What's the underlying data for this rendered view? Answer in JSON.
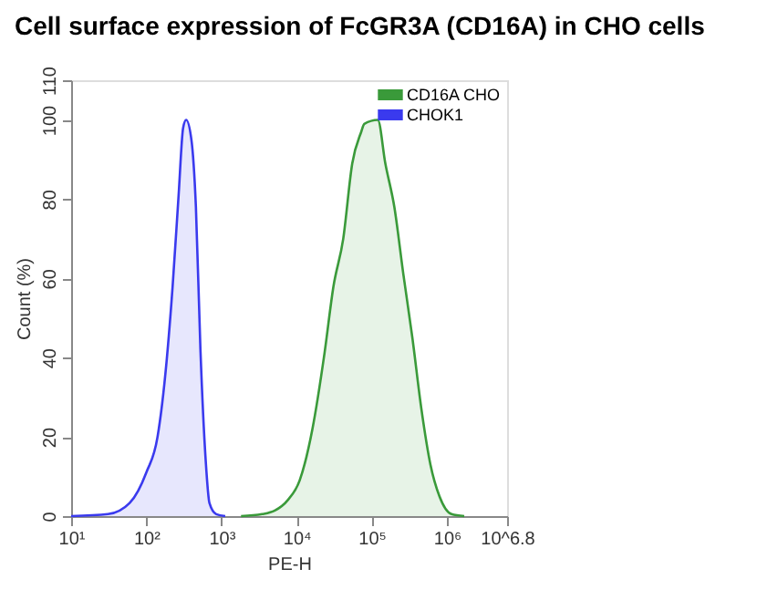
{
  "chart_data": {
    "type": "area",
    "title": "Cell surface expression of FcGR3A (CD16A) in CHO cells",
    "xlabel": "PE-H",
    "ylabel": "Count (%)",
    "log": "x",
    "xlim": [
      10,
      6309573
    ],
    "ylim": [
      0,
      110
    ],
    "xticks": [
      {
        "value": 10,
        "label": "10¹"
      },
      {
        "value": 100,
        "label": "10²"
      },
      {
        "value": 1000,
        "label": "10³"
      },
      {
        "value": 10000,
        "label": "10⁴"
      },
      {
        "value": 100000,
        "label": "10⁵"
      },
      {
        "value": 1000000,
        "label": "10⁶"
      },
      {
        "value": 6309573,
        "label": "10^6.8"
      }
    ],
    "yticks": [
      0,
      20,
      40,
      60,
      80,
      100,
      110
    ],
    "grid": false,
    "legend": "top right",
    "series": [
      {
        "name": "CD16A CHO",
        "color": "#3a9a3a",
        "x": [
          1820,
          3470,
          5130,
          7590,
          10970,
          16220,
          23440,
          30900,
          41690,
          54950,
          72440,
          79430,
          120230,
          151360,
          199530,
          263030,
          346740,
          457090,
          602560,
          794330,
          1148150,
          1698240
        ],
        "values": [
          0,
          0.5,
          1.4,
          4,
          9,
          22,
          41,
          58,
          70,
          89,
          97,
          99,
          100,
          89,
          78,
          61,
          45,
          27,
          13,
          5,
          0.5,
          0
        ]
      },
      {
        "name": "CHOK1",
        "color": "#3a3aee",
        "x": [
          10,
          31,
          60,
          100,
          141,
          186,
          224,
          269,
          309,
          339,
          398,
          457,
          525,
          617,
          692,
          851,
          1122
        ],
        "values": [
          0,
          0.5,
          3.3,
          11,
          20,
          39,
          58,
          81,
          98,
          100,
          95,
          78,
          42,
          14,
          3.3,
          0.5,
          0
        ]
      }
    ]
  }
}
